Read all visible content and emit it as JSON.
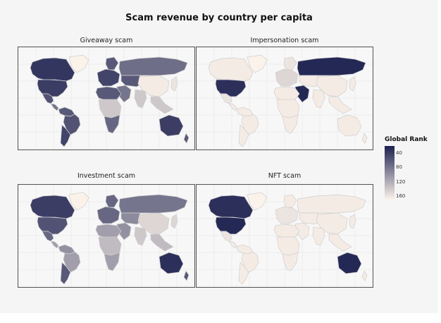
{
  "title": "Scam revenue by country per capita",
  "legend": {
    "title": "Global Rank",
    "ticks": [
      40,
      80,
      120,
      160
    ],
    "min": 20,
    "max": 170,
    "color_low": "#1d2150",
    "color_high": "#fbf2ea"
  },
  "panels": [
    {
      "title": "Giveaway scam",
      "ranks": {
        "canada": 35,
        "usa": 40,
        "mexico": 55,
        "greenland": 170,
        "central_america": 80,
        "south_america_north": 60,
        "brazil": 55,
        "south_america_south": 45,
        "europe_west": 45,
        "scandinavia": 60,
        "russia": 75,
        "middle_east": 80,
        "africa_north": 60,
        "africa_central": 140,
        "africa_south": 70,
        "central_asia": 60,
        "india": 140,
        "china": 165,
        "southeast_asia": 140,
        "japan": 160,
        "australia": 40,
        "new_zealand": 60
      }
    },
    {
      "title": "Impersonation scam",
      "ranks": {
        "canada": 165,
        "usa": 30,
        "mexico": 160,
        "greenland": 170,
        "central_america": 165,
        "south_america_north": 165,
        "brazil": 165,
        "south_america_south": 165,
        "europe_west": 150,
        "scandinavia": 160,
        "russia": 25,
        "middle_east": 25,
        "africa_north": 165,
        "africa_central": 165,
        "africa_south": 165,
        "central_asia": 165,
        "india": 165,
        "china": 165,
        "southeast_asia": 165,
        "japan": 165,
        "australia": 165,
        "new_zealand": 165
      }
    },
    {
      "title": "Investment scam",
      "ranks": {
        "canada": 40,
        "usa": 55,
        "mexico": 70,
        "greenland": 170,
        "central_america": 110,
        "south_america_north": 100,
        "brazil": 110,
        "south_america_south": 60,
        "europe_west": 70,
        "scandinavia": 70,
        "russia": 80,
        "middle_east": 100,
        "africa_north": 110,
        "africa_central": 130,
        "africa_south": 110,
        "central_asia": 95,
        "india": 140,
        "china": 150,
        "southeast_asia": 130,
        "japan": 150,
        "australia": 30,
        "new_zealand": 60
      }
    },
    {
      "title": "NFT scam",
      "ranks": {
        "canada": 30,
        "usa": 25,
        "mexico": 160,
        "greenland": 170,
        "central_america": 165,
        "south_america_north": 165,
        "brazil": 165,
        "south_america_south": 165,
        "europe_west": 160,
        "scandinavia": 165,
        "russia": 165,
        "middle_east": 165,
        "africa_north": 165,
        "africa_central": 165,
        "africa_south": 165,
        "central_asia": 165,
        "india": 165,
        "china": 165,
        "southeast_asia": 165,
        "japan": 165,
        "australia": 25,
        "new_zealand": 165
      }
    }
  ]
}
